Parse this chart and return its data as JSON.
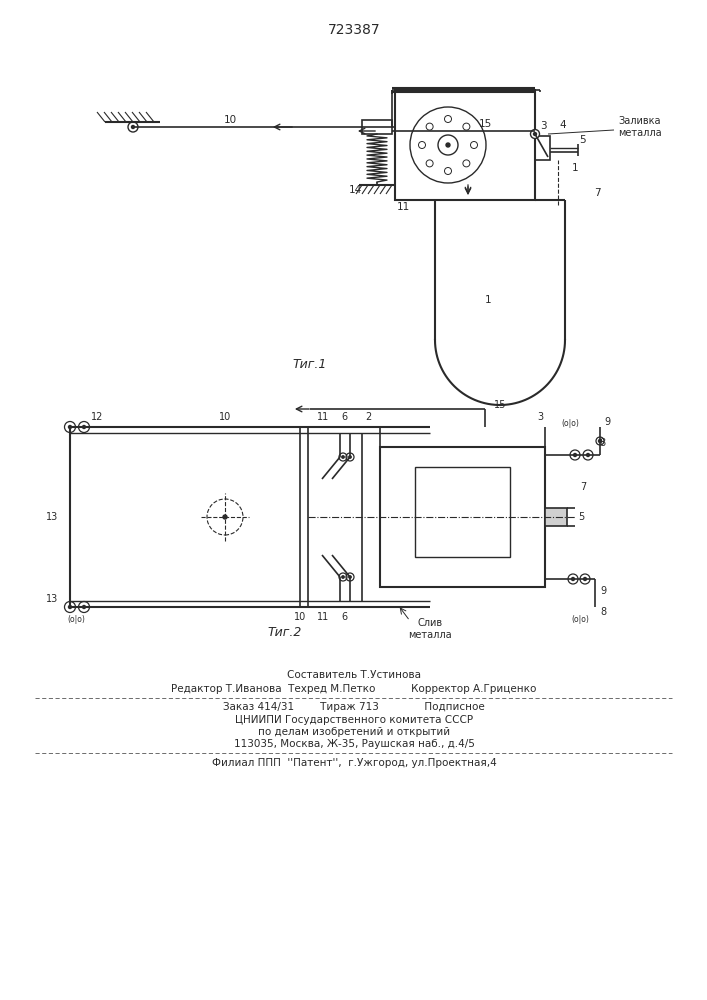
{
  "patent_number": "723387",
  "fig1_caption": "Τиг.1",
  "fig2_caption": "Τиг.2",
  "footer_line1": "Составитель Т.Устинова",
  "footer_line2": "Редактор Т.Иванова  Техред М.Петко           Корректор А.Гриценко",
  "footer_line3": "Заказ 414/31        Тираж 713              Подписное",
  "footer_line4": "ЦНИИПИ Государственного комитета СССР",
  "footer_line5": "по делам изобретений и открытий",
  "footer_line6": "113035, Москва, Ж-35, Раушская наб., д.4/5",
  "footer_line7": "Филиал ППП  ''Патент'',  г.Ужгород, ул.Проектная,4",
  "zalivka": "Заливка\nметалла",
  "sliv": "Слив\nметалла",
  "bg_color": "#ffffff",
  "line_color": "#2a2a2a"
}
